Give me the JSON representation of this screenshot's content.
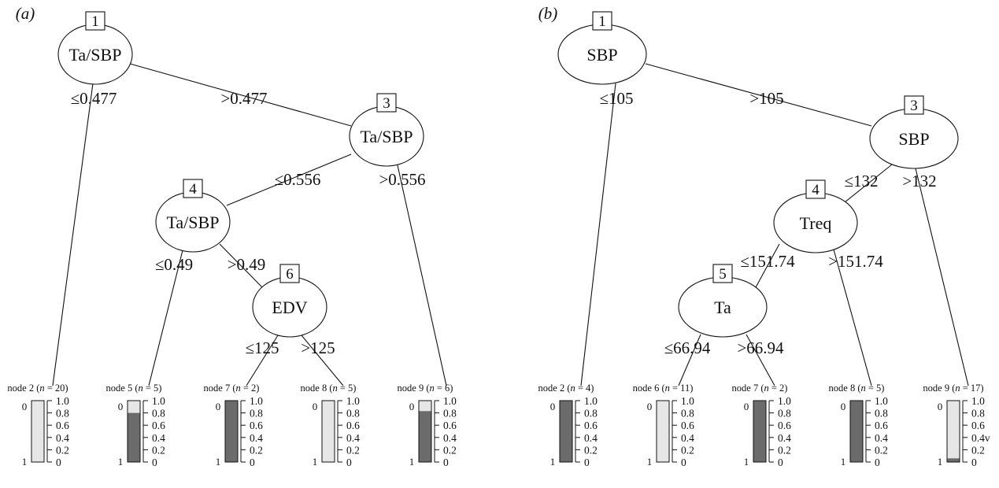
{
  "panels": [
    {
      "tag": "(a)",
      "nodes": [
        {
          "id": 1,
          "label": "Ta/SBP"
        },
        {
          "id": 3,
          "label": "Ta/SBP"
        },
        {
          "id": 4,
          "label": "Ta/SBP"
        },
        {
          "id": 6,
          "label": "EDV"
        }
      ],
      "edges": [
        {
          "from": 1,
          "to": 2,
          "label": "≤0.477"
        },
        {
          "from": 1,
          "to": 3,
          "label": ">0.477"
        },
        {
          "from": 3,
          "to": 4,
          "label": "≤0.556"
        },
        {
          "from": 3,
          "to": 9,
          "label": ">0.556"
        },
        {
          "from": 4,
          "to": 5,
          "label": "≤0.49"
        },
        {
          "from": 4,
          "to": 6,
          "label": ">0.49"
        },
        {
          "from": 6,
          "to": 7,
          "label": "≤125"
        },
        {
          "from": 6,
          "to": 8,
          "label": ">125"
        }
      ],
      "leaves": [
        {
          "node": 2,
          "n": "20",
          "p1": 0.0
        },
        {
          "node": 5,
          "n": "5",
          "p1": 0.8
        },
        {
          "node": 7,
          "n": "2",
          "p1": 1.0
        },
        {
          "node": 8,
          "n": "5",
          "p1": 0.0
        },
        {
          "node": 9,
          "n": "6",
          "p1": 0.83
        }
      ]
    },
    {
      "tag": "(b)",
      "nodes": [
        {
          "id": 1,
          "label": "SBP"
        },
        {
          "id": 3,
          "label": "SBP"
        },
        {
          "id": 4,
          "label": "Treq"
        },
        {
          "id": 5,
          "label": "Ta"
        }
      ],
      "edges": [
        {
          "from": 1,
          "to": 2,
          "label": "≤105"
        },
        {
          "from": 1,
          "to": 3,
          "label": ">105"
        },
        {
          "from": 3,
          "to": 4,
          "label": "≤132"
        },
        {
          "from": 3,
          "to": 9,
          "label": ">132"
        },
        {
          "from": 4,
          "to": 5,
          "label": "≤151.74"
        },
        {
          "from": 4,
          "to": 8,
          "label": ">151.74"
        },
        {
          "from": 5,
          "to": 6,
          "label": "≤66.94"
        },
        {
          "from": 5,
          "to": 7,
          "label": ">66.94"
        }
      ],
      "leaves": [
        {
          "node": 2,
          "n": "4",
          "p1": 1.0
        },
        {
          "node": 6,
          "n": "11",
          "p1": 0.0
        },
        {
          "node": 7,
          "n": "2",
          "p1": 1.0
        },
        {
          "node": 8,
          "n": "5",
          "p1": 1.0
        },
        {
          "node": 9,
          "n": "17",
          "p1": 0.06
        }
      ]
    }
  ],
  "leaf_text": {
    "node_word": "node",
    "n_symbol": "n",
    "class_top": "0",
    "class_bottom": "1"
  },
  "tick_labels": [
    "1.0",
    "0.8",
    "0.6",
    "0.4",
    "0.2",
    "0"
  ],
  "tick_labels_b_leaf9": [
    "1.0",
    "0.8",
    "0.6",
    "0.4v",
    "0.2",
    "0"
  ],
  "colors": {
    "class_1_fill": "#6b6b6b",
    "class_0_fill": "#e6e6e6",
    "line": "#111111"
  }
}
